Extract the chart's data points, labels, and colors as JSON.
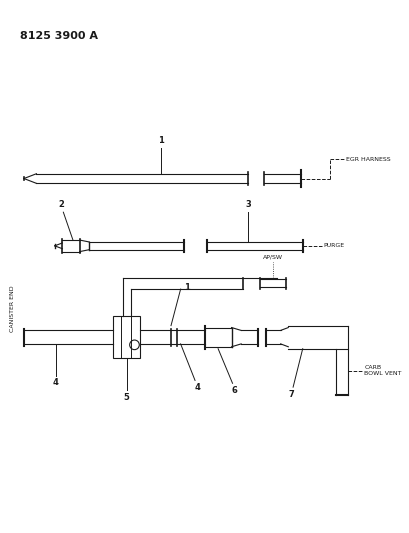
{
  "title": "8125 3900 A",
  "background_color": "#ffffff",
  "line_color": "#1a1a1a",
  "fig_width": 4.1,
  "fig_height": 5.33,
  "dpi": 100,
  "labels": {
    "part_number": "8125 3900 A",
    "egr_harness": "EGR HARNESS",
    "purge": "PURGE",
    "ap_sw": "AP/SW",
    "carb_bowl_vent": "CARB\nBOWL VENT",
    "canister_end": "CANISTER END"
  }
}
